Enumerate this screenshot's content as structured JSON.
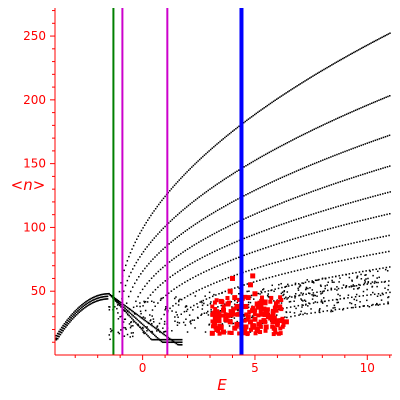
{
  "chart_data": {
    "type": "scatter",
    "title": "",
    "xlabel": "E",
    "ylabel": "<n>",
    "xlim": [
      -3.9,
      11.1
    ],
    "ylim": [
      0,
      272
    ],
    "xticks": [
      0,
      5,
      10
    ],
    "yticks": [
      50,
      100,
      150,
      200,
      250
    ],
    "grid": false,
    "colors": {
      "axis": "#ff0000",
      "black_points": "#000000",
      "red_points": "#ff0000"
    },
    "vertical_lines": [
      {
        "x": -1.3,
        "color": "#008000"
      },
      {
        "x": -0.9,
        "color": "#cc00cc"
      },
      {
        "x": 1.1,
        "color": "#cc00cc"
      },
      {
        "x": 4.4,
        "color": "#0000ff"
      }
    ],
    "black_series_note": "dense point curves",
    "red_points": [
      [
        3.2,
        25
      ],
      [
        3.4,
        30
      ],
      [
        3.5,
        22
      ],
      [
        3.6,
        35
      ],
      [
        3.7,
        28
      ],
      [
        3.8,
        40
      ],
      [
        3.9,
        26
      ],
      [
        4.0,
        33
      ],
      [
        4.1,
        45
      ],
      [
        4.2,
        24
      ],
      [
        3.3,
        20
      ],
      [
        3.6,
        18
      ],
      [
        3.9,
        50
      ],
      [
        4.0,
        60
      ],
      [
        4.2,
        38
      ],
      [
        3.5,
        42
      ],
      [
        3.8,
        31
      ],
      [
        3.1,
        17
      ],
      [
        3.4,
        27
      ],
      [
        4.1,
        21
      ],
      [
        4.6,
        22
      ],
      [
        4.7,
        30
      ],
      [
        4.8,
        26
      ],
      [
        4.9,
        35
      ],
      [
        5.0,
        28
      ],
      [
        5.1,
        40
      ],
      [
        5.2,
        24
      ],
      [
        5.3,
        32
      ],
      [
        5.4,
        27
      ],
      [
        5.5,
        22
      ],
      [
        5.6,
        30
      ],
      [
        5.8,
        26
      ],
      [
        6.0,
        25
      ],
      [
        6.2,
        27
      ],
      [
        4.7,
        45
      ],
      [
        4.8,
        55
      ],
      [
        4.9,
        62
      ],
      [
        5.0,
        48
      ],
      [
        5.2,
        38
      ],
      [
        5.5,
        34
      ],
      [
        5.7,
        29
      ],
      [
        4.5,
        20
      ],
      [
        4.6,
        38
      ],
      [
        5.1,
        20
      ],
      [
        5.4,
        36
      ],
      [
        6.4,
        26
      ],
      [
        4.9,
        23
      ],
      [
        5.3,
        42
      ]
    ]
  }
}
